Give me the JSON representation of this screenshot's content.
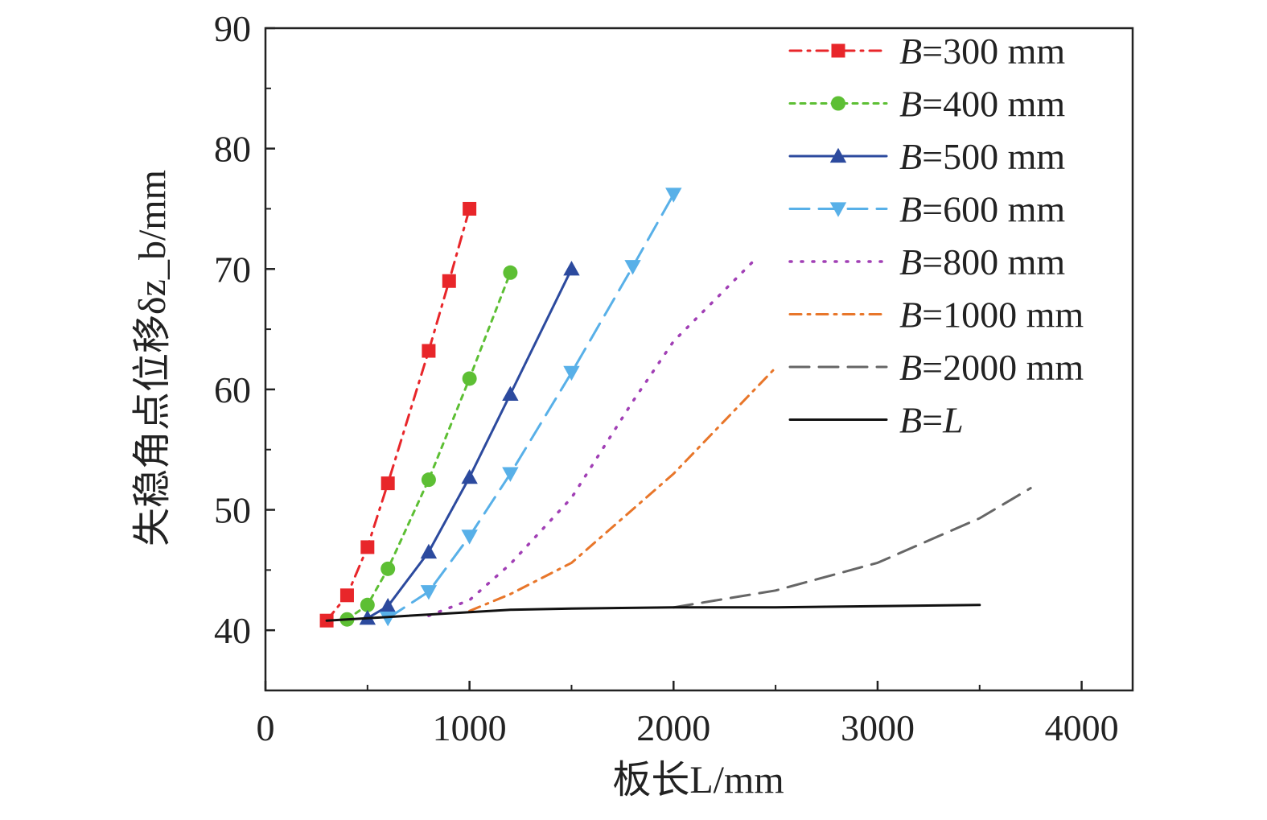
{
  "chart_data": {
    "type": "line",
    "xlabel": "板长L/mm",
    "ylabel": "失稳角点位移δz_b/mm",
    "xlim": [
      0,
      4250
    ],
    "ylim": [
      35,
      90
    ],
    "xticks": [
      0,
      1000,
      2000,
      3000,
      4000
    ],
    "yticks": [
      40,
      50,
      60,
      70,
      80,
      90
    ],
    "grid": false,
    "legend_position": "top-right",
    "series": [
      {
        "name": "B=300 mm",
        "color": "#e8262a",
        "dash": "dashdot",
        "marker": "square",
        "x": [
          300,
          400,
          500,
          600,
          800,
          900,
          1000
        ],
        "y": [
          40.8,
          42.9,
          46.9,
          52.2,
          63.2,
          69.0,
          75.0
        ]
      },
      {
        "name": "B=400 mm",
        "color": "#5dbf34",
        "dash": "short",
        "marker": "circle",
        "x": [
          400,
          500,
          600,
          800,
          1000,
          1200
        ],
        "y": [
          40.9,
          42.1,
          45.1,
          52.5,
          60.9,
          69.7
        ]
      },
      {
        "name": "B=500 mm",
        "color": "#2c4a9e",
        "dash": "solid",
        "marker": "triangle-up",
        "x": [
          500,
          600,
          800,
          1000,
          1200,
          1500
        ],
        "y": [
          41.0,
          42.0,
          46.5,
          52.7,
          59.6,
          70.0
        ]
      },
      {
        "name": "B=600 mm",
        "color": "#58b0e8",
        "dash": "longdash",
        "marker": "triangle-down",
        "x": [
          600,
          800,
          1000,
          1200,
          1500,
          1800,
          2000
        ],
        "y": [
          41.0,
          43.2,
          47.8,
          53.0,
          61.4,
          70.2,
          76.2
        ]
      },
      {
        "name": "B=800 mm",
        "color": "#a13fb5",
        "dash": "dot",
        "marker": "none",
        "x": [
          800,
          1000,
          1200,
          1500,
          1800,
          2000,
          2400
        ],
        "y": [
          41.2,
          42.5,
          45.5,
          51.0,
          59.0,
          64.0,
          70.8
        ]
      },
      {
        "name": "B=1000 mm",
        "color": "#e8762a",
        "dash": "dashdot",
        "marker": "none",
        "x": [
          1000,
          1200,
          1500,
          2000,
          2500
        ],
        "y": [
          41.6,
          43.0,
          45.6,
          53.0,
          61.8
        ]
      },
      {
        "name": "B=2000 mm",
        "color": "#666666",
        "dash": "longdash",
        "marker": "none",
        "x": [
          2000,
          2500,
          3000,
          3500,
          3750
        ],
        "y": [
          41.9,
          43.3,
          45.6,
          49.3,
          51.8
        ]
      },
      {
        "name": "B=L",
        "color": "#111111",
        "dash": "solid",
        "marker": "none",
        "x": [
          300,
          600,
          1000,
          1200,
          1500,
          2000,
          2500,
          3000,
          3500
        ],
        "y": [
          40.8,
          41.1,
          41.5,
          41.7,
          41.8,
          41.9,
          41.9,
          42.0,
          42.1
        ]
      }
    ]
  }
}
